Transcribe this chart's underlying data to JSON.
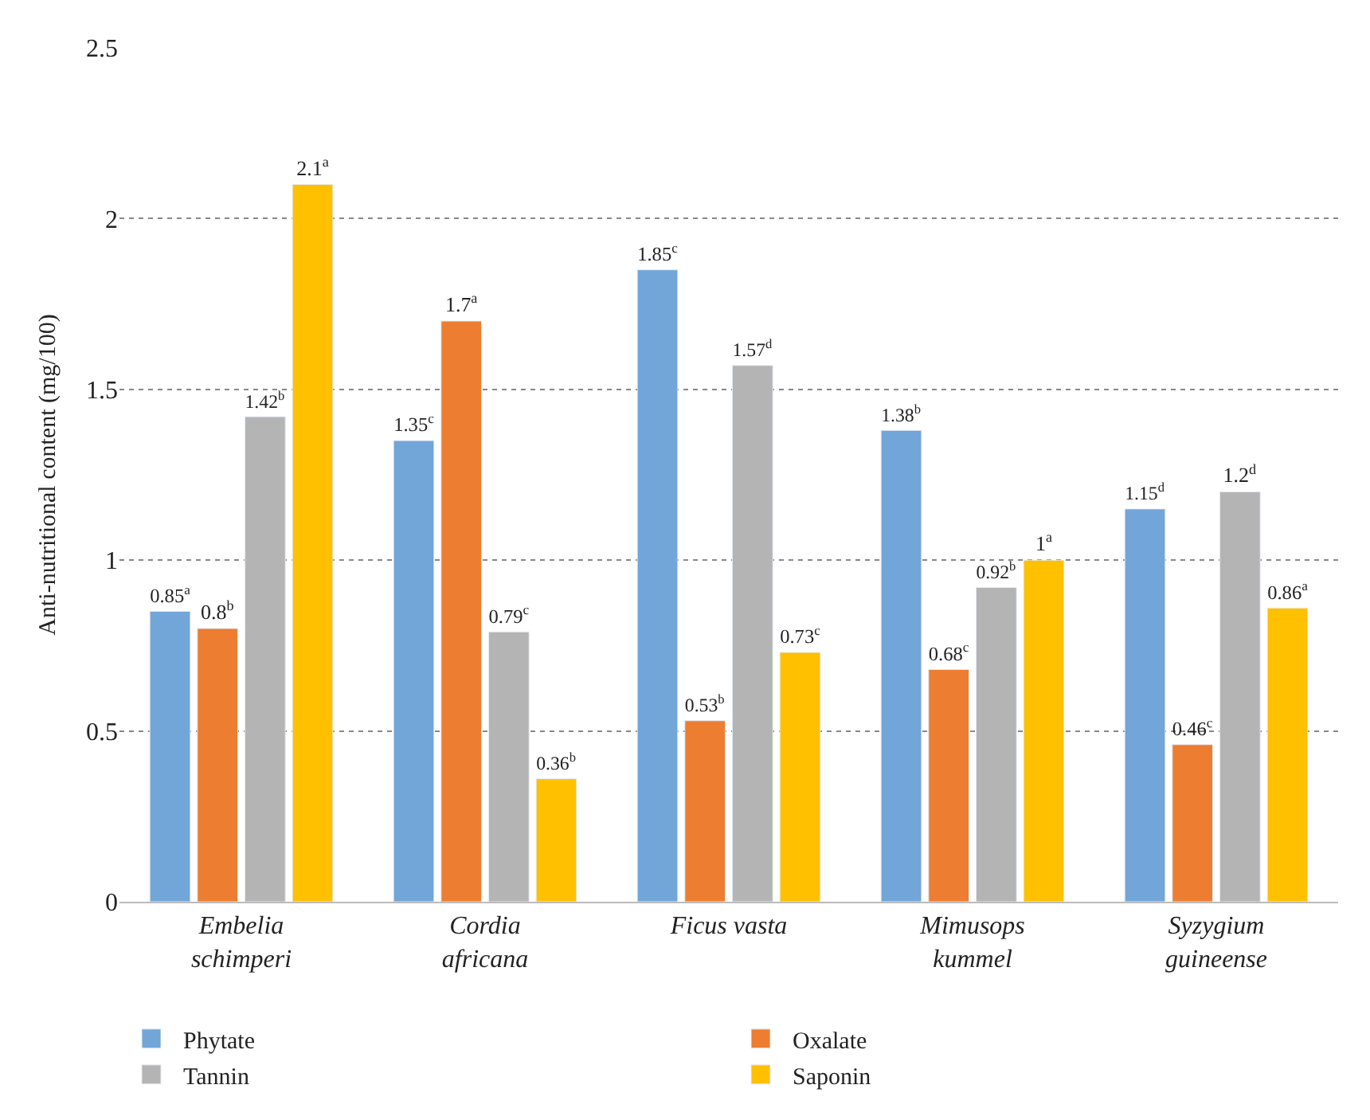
{
  "chart_data": {
    "type": "bar",
    "ylabel": "Anti-nutritional content (mg/100)",
    "categories": [
      "Embelia schimperi",
      "Cordia africana",
      "Ficus vasta",
      "Mimusops kummel",
      "Syzygium guineense"
    ],
    "series": [
      {
        "name": "Phytate",
        "color": "#72a5d8",
        "values": [
          0.85,
          1.35,
          1.85,
          1.38,
          1.15
        ],
        "value_labels": [
          "0.85$^{a}$",
          "1.35$^{c}$",
          "1.85$^{c}$",
          "1.38$^{b}$",
          "1.15$^{d}$"
        ]
      },
      {
        "name": "Oxalate",
        "color": "#ed7d31",
        "values": [
          0.8,
          1.7,
          0.53,
          0.68,
          0.46
        ],
        "value_labels": [
          "0.8$^{b}$",
          "1.7$^{a}$",
          "0.53$^{b}$",
          "0.68$^{c}$",
          "0.46$^{c}$"
        ]
      },
      {
        "name": "Tannin",
        "color": "#b4b4b4",
        "values": [
          1.42,
          0.79,
          1.57,
          0.92,
          1.2
        ],
        "value_labels": [
          "1.42$^{b}$",
          "0.79$^{c}$",
          "1.57$^{d}$",
          "0.92$^{b}$",
          "1.2$^{d}$"
        ]
      },
      {
        "name": "Saponin",
        "color": "#ffc000",
        "values": [
          2.1,
          0.36,
          0.73,
          1,
          0.86
        ],
        "value_labels": [
          "2.1$^{a}$",
          "0.36$^{b}$",
          "0.73$^{c}$",
          "1$^{a}$",
          "0.86$^{a}$"
        ]
      }
    ],
    "ylim": [
      0,
      2.5
    ],
    "yticks": [
      0,
      0.5,
      1,
      1.5,
      2,
      2.5
    ],
    "grid": "y",
    "legend": "bottom"
  }
}
